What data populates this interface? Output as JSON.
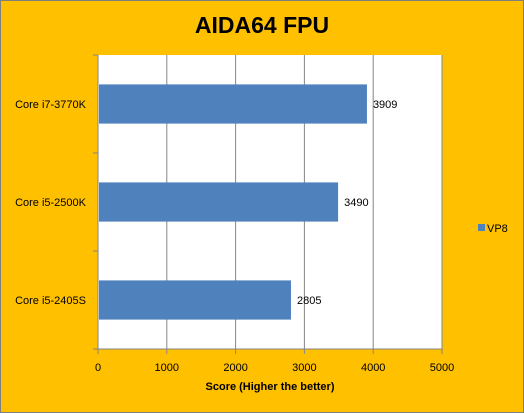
{
  "chart_data": {
    "type": "bar",
    "orientation": "horizontal",
    "title": "AIDA64 FPU",
    "xlabel": "Score (Higher the better)",
    "ylabel": "",
    "categories": [
      "Core i7-3770K",
      "Core i5-2500K",
      "Core i5-2405S"
    ],
    "series": [
      {
        "name": "VP8",
        "values": [
          3909,
          3490,
          2805
        ],
        "color": "#4f81bd"
      }
    ],
    "xlim": [
      0,
      5000
    ],
    "xticks": [
      0,
      1000,
      2000,
      3000,
      4000,
      5000
    ],
    "grid": true,
    "legend": "right",
    "data_labels": true,
    "colors": {
      "background": "#ffc000",
      "plot_area": "#ffffff",
      "bar": "#4f81bd"
    }
  }
}
